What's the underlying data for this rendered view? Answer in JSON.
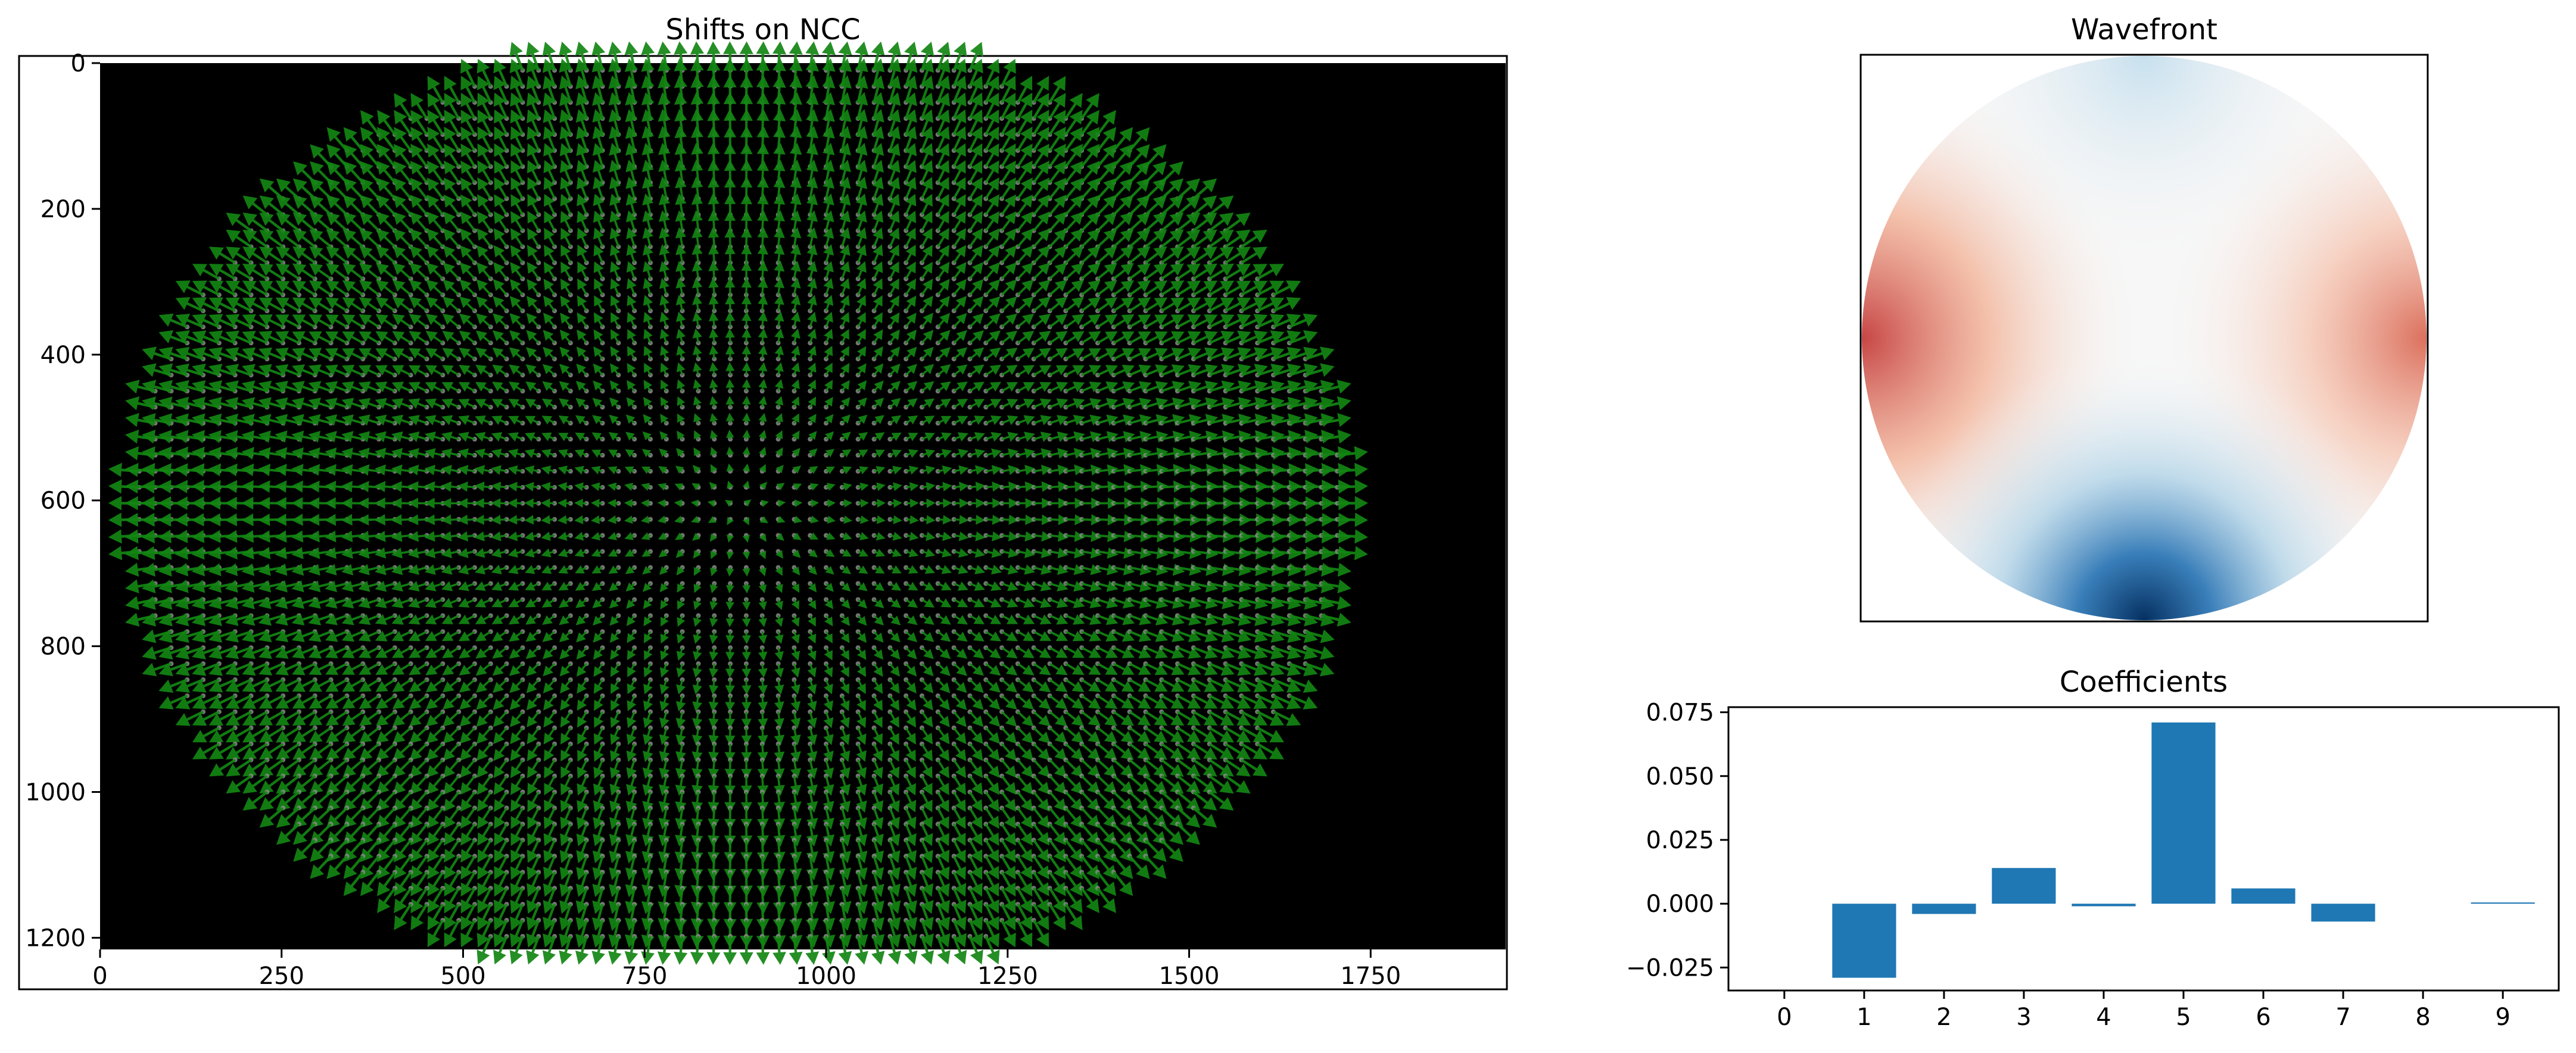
{
  "figure_bg": "#ffffff",
  "chart_data": [
    {
      "type": "quiver",
      "title": "Shifts on NCC",
      "xlabel": "",
      "ylabel": "",
      "xlim": [
        0,
        1936
      ],
      "ylim": [
        1216,
        0
      ],
      "x_ticks": [
        0,
        250,
        500,
        750,
        1000,
        1250,
        1500,
        1750
      ],
      "y_ticks": [
        0,
        200,
        400,
        600,
        800,
        1000,
        1200
      ],
      "background_color": "#000000",
      "arrow_color": "#128512",
      "spot_color": "#8a8a8a",
      "grid": false,
      "aperture": {
        "center_x": 880,
        "center_y": 610,
        "radius_x": 830,
        "radius_y": 650
      },
      "grid_spacing": 22,
      "field": "radial-outward"
    },
    {
      "type": "heatmap",
      "title": "Wavefront",
      "colormap": "RdBu_r",
      "shape": "circular-pupil",
      "axes_visible": false,
      "colors": {
        "negative": "#053061",
        "zero": "#f7f7f7",
        "positive": "#b2182b"
      }
    },
    {
      "type": "bar",
      "title": "Coefficients",
      "xlabel": "",
      "ylabel": "",
      "categories": [
        "0",
        "1",
        "2",
        "3",
        "4",
        "5",
        "6",
        "7",
        "8",
        "9"
      ],
      "values": [
        0.0,
        -0.029,
        -0.004,
        0.014,
        -0.001,
        0.071,
        0.006,
        -0.007,
        0.0,
        0.0005
      ],
      "ylim": [
        -0.034,
        0.077
      ],
      "y_ticks": [
        -0.025,
        0.0,
        0.025,
        0.05,
        0.075
      ],
      "y_tick_labels": [
        "−0.025",
        "0.000",
        "0.025",
        "0.050",
        "0.075"
      ],
      "bar_color": "#1f77b4",
      "grid": false
    }
  ]
}
